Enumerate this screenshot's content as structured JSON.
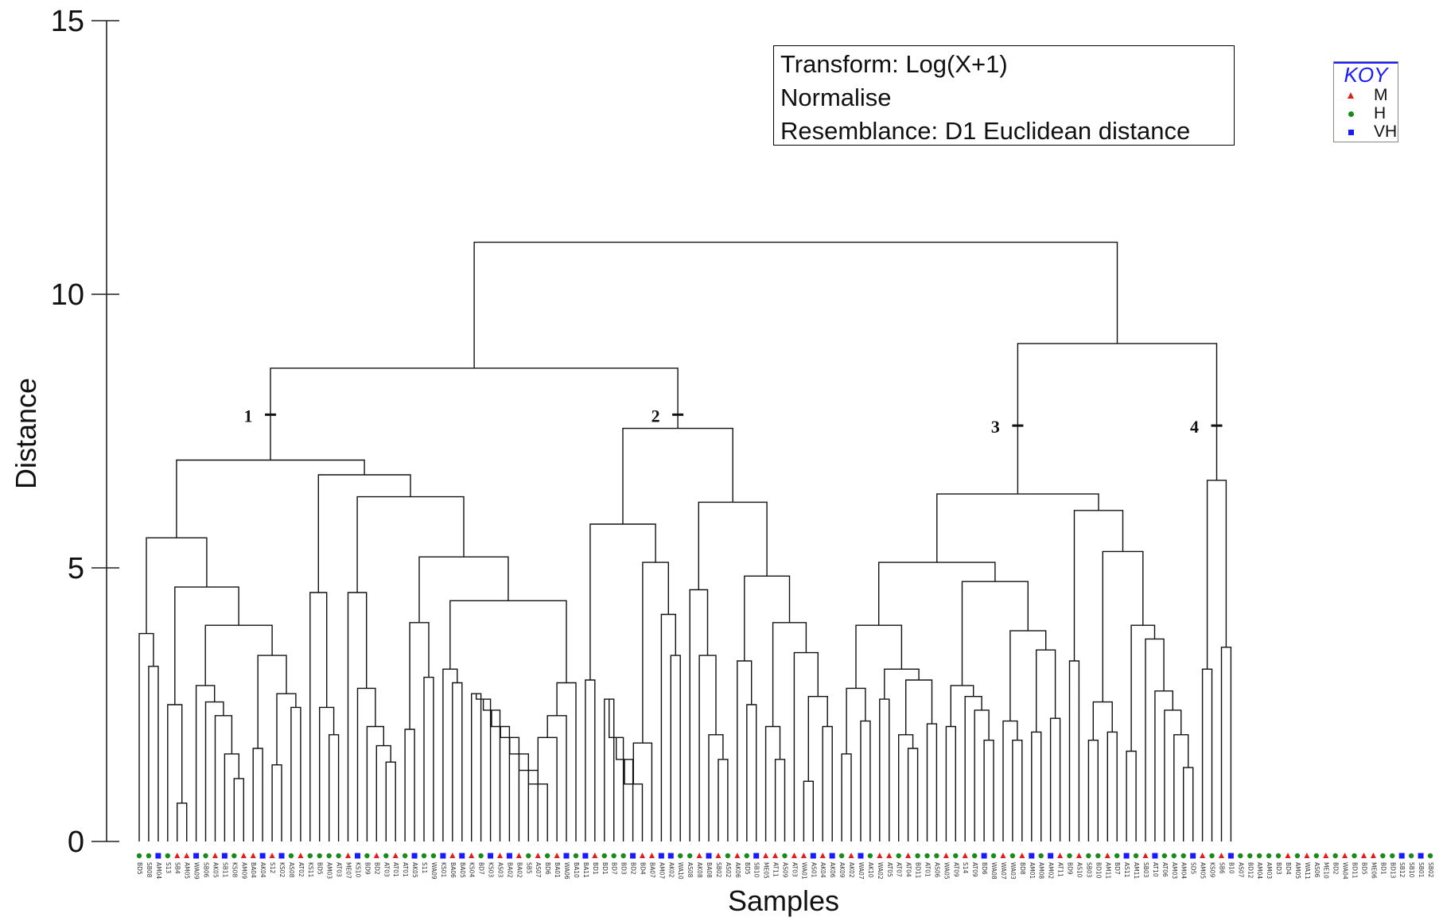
{
  "chart_data": {
    "type": "dendrogram",
    "xlabel": "Samples",
    "ylabel": "Distance",
    "ylim": [
      0,
      15
    ],
    "yticks": [
      "0",
      "5",
      "10",
      "15"
    ],
    "annotation_lines": [
      "Transform: Log(X+1)",
      "Normalise",
      "Resemblance: D1 Euclidean distance"
    ],
    "legend": {
      "title": "KOY",
      "entries": [
        {
          "label": "M",
          "symbol": "triangle",
          "color": "#e21b1b"
        },
        {
          "label": "H",
          "symbol": "circle",
          "color": "#1a8a1a"
        },
        {
          "label": "VH",
          "symbol": "square",
          "color": "#1a1aff"
        }
      ]
    },
    "cluster_labels": [
      {
        "label": "1",
        "height": 7.8
      },
      {
        "label": "2",
        "height": 7.8
      },
      {
        "label": "3",
        "height": 7.6
      },
      {
        "label": "4",
        "height": 7.6
      }
    ],
    "leaves": [
      {
        "n": "BD5",
        "g": "H"
      },
      {
        "n": "SB08",
        "g": "H"
      },
      {
        "n": "AM04",
        "g": "VH"
      },
      {
        "n": "S13",
        "g": "H"
      },
      {
        "n": "SB4",
        "g": "M"
      },
      {
        "n": "AM05",
        "g": "M"
      },
      {
        "n": "WA09",
        "g": "VH"
      },
      {
        "n": "SB06",
        "g": "H"
      },
      {
        "n": "AK05",
        "g": "M"
      },
      {
        "n": "SB11",
        "g": "VH"
      },
      {
        "n": "KS08",
        "g": "H"
      },
      {
        "n": "AM09",
        "g": "M"
      },
      {
        "n": "BA04",
        "g": "M"
      },
      {
        "n": "AK04",
        "g": "VH"
      },
      {
        "n": "S12",
        "g": "M"
      },
      {
        "n": "KS02",
        "g": "VH"
      },
      {
        "n": "AS08",
        "g": "H"
      },
      {
        "n": "AT02",
        "g": "M"
      },
      {
        "n": "KS11",
        "g": "H"
      },
      {
        "n": "BD5",
        "g": "H"
      },
      {
        "n": "AM03",
        "g": "H"
      },
      {
        "n": "AT03",
        "g": "H"
      },
      {
        "n": "ME07",
        "g": "M"
      },
      {
        "n": "KS10",
        "g": "VH"
      },
      {
        "n": "BD9",
        "g": "H"
      },
      {
        "n": "BD2",
        "g": "M"
      },
      {
        "n": "AT03",
        "g": "H"
      },
      {
        "n": "AT01",
        "g": "M"
      },
      {
        "n": "AT01",
        "g": "H"
      },
      {
        "n": "AK05",
        "g": "VH"
      },
      {
        "n": "S11",
        "g": "H"
      },
      {
        "n": "WA09",
        "g": "H"
      },
      {
        "n": "KS01",
        "g": "VH"
      },
      {
        "n": "BA06",
        "g": "M"
      },
      {
        "n": "BA05",
        "g": "VH"
      },
      {
        "n": "KS04",
        "g": "M"
      },
      {
        "n": "BD7",
        "g": "H"
      },
      {
        "n": "KS03",
        "g": "VH"
      },
      {
        "n": "AS03",
        "g": "M"
      },
      {
        "n": "BA02",
        "g": "VH"
      },
      {
        "n": "BA02",
        "g": "M"
      },
      {
        "n": "SB5",
        "g": "H"
      },
      {
        "n": "AS07",
        "g": "M"
      },
      {
        "n": "BD6",
        "g": "H"
      },
      {
        "n": "BA01",
        "g": "M"
      },
      {
        "n": "WA06",
        "g": "VH"
      },
      {
        "n": "BA10",
        "g": "H"
      },
      {
        "n": "BA11",
        "g": "VH"
      },
      {
        "n": "BD1",
        "g": "M"
      },
      {
        "n": "BD1",
        "g": "H"
      },
      {
        "n": "BD7",
        "g": "H"
      },
      {
        "n": "BD3",
        "g": "H"
      },
      {
        "n": "BD2",
        "g": "VH"
      },
      {
        "n": "BD4",
        "g": "M"
      },
      {
        "n": "BA07",
        "g": "M"
      },
      {
        "n": "AM07",
        "g": "VH"
      },
      {
        "n": "AK02",
        "g": "VH"
      },
      {
        "n": "WA10",
        "g": "H"
      },
      {
        "n": "AS08",
        "g": "H"
      },
      {
        "n": "AK08",
        "g": "M"
      },
      {
        "n": "BA08",
        "g": "VH"
      },
      {
        "n": "SB02",
        "g": "M"
      },
      {
        "n": "AS02",
        "g": "H"
      },
      {
        "n": "AK06",
        "g": "M"
      },
      {
        "n": "BD5",
        "g": "H"
      },
      {
        "n": "SB10",
        "g": "VH"
      },
      {
        "n": "ME05",
        "g": "M"
      },
      {
        "n": "AT11",
        "g": "M"
      },
      {
        "n": "AS09",
        "g": "H"
      },
      {
        "n": "AT03",
        "g": "M"
      },
      {
        "n": "WA01",
        "g": "M"
      },
      {
        "n": "AS01",
        "g": "VH"
      },
      {
        "n": "AK04",
        "g": "M"
      },
      {
        "n": "AK06",
        "g": "VH"
      },
      {
        "n": "AK09",
        "g": "H"
      },
      {
        "n": "AK02",
        "g": "M"
      },
      {
        "n": "WA07",
        "g": "VH"
      },
      {
        "n": "AK10",
        "g": "H"
      },
      {
        "n": "WA02",
        "g": "M"
      },
      {
        "n": "AT05",
        "g": "M"
      },
      {
        "n": "AT07",
        "g": "H"
      },
      {
        "n": "AT04",
        "g": "M"
      },
      {
        "n": "BD11",
        "g": "H"
      },
      {
        "n": "AT01",
        "g": "H"
      },
      {
        "n": "AS06",
        "g": "H"
      },
      {
        "n": "WA05",
        "g": "M"
      },
      {
        "n": "AT09",
        "g": "H"
      },
      {
        "n": "S14",
        "g": "M"
      },
      {
        "n": "AT09",
        "g": "H"
      },
      {
        "n": "BD6",
        "g": "VH"
      },
      {
        "n": "WA08",
        "g": "H"
      },
      {
        "n": "WA07",
        "g": "M"
      },
      {
        "n": "WA03",
        "g": "H"
      },
      {
        "n": "BD8",
        "g": "M"
      },
      {
        "n": "AM01",
        "g": "VH"
      },
      {
        "n": "AM08",
        "g": "H"
      },
      {
        "n": "AM02",
        "g": "VH"
      },
      {
        "n": "AT11",
        "g": "M"
      },
      {
        "n": "BD9",
        "g": "H"
      },
      {
        "n": "AS10",
        "g": "M"
      },
      {
        "n": "SB03",
        "g": "H"
      },
      {
        "n": "BD10",
        "g": "H"
      },
      {
        "n": "AM11",
        "g": "M"
      },
      {
        "n": "BD7",
        "g": "H"
      },
      {
        "n": "AS11",
        "g": "VH"
      },
      {
        "n": "AM11",
        "g": "H"
      },
      {
        "n": "SB03",
        "g": "M"
      },
      {
        "n": "AT10",
        "g": "VH"
      },
      {
        "n": "AT06",
        "g": "H"
      },
      {
        "n": "AM03",
        "g": "H"
      },
      {
        "n": "AM04",
        "g": "H"
      },
      {
        "n": "SD5",
        "g": "VH"
      },
      {
        "n": "AM05",
        "g": "M"
      },
      {
        "n": "KS09",
        "g": "H"
      },
      {
        "n": "SB6",
        "g": "M"
      },
      {
        "n": "B10",
        "g": "VH"
      },
      {
        "n": "AS07",
        "g": "H"
      },
      {
        "n": "BD12",
        "g": "H"
      },
      {
        "n": "AM04",
        "g": "H"
      },
      {
        "n": "AM03",
        "g": "H"
      },
      {
        "n": "BD3",
        "g": "H"
      },
      {
        "n": "BD4",
        "g": "M"
      },
      {
        "n": "AM05",
        "g": "H"
      },
      {
        "n": "WA11",
        "g": "M"
      },
      {
        "n": "AS06",
        "g": "H"
      },
      {
        "n": "ME10",
        "g": "M"
      },
      {
        "n": "BD2",
        "g": "H"
      },
      {
        "n": "WA04",
        "g": "M"
      },
      {
        "n": "BD11",
        "g": "H"
      },
      {
        "n": "BD5",
        "g": "M"
      },
      {
        "n": "ME06",
        "g": "M"
      },
      {
        "n": "BD1",
        "g": "H"
      },
      {
        "n": "BD13",
        "g": "H"
      },
      {
        "n": "SB12",
        "g": "VH"
      },
      {
        "n": "SB10",
        "g": "H"
      },
      {
        "n": "SB01",
        "g": "VH"
      },
      {
        "n": "SB02",
        "g": "H"
      }
    ]
  }
}
